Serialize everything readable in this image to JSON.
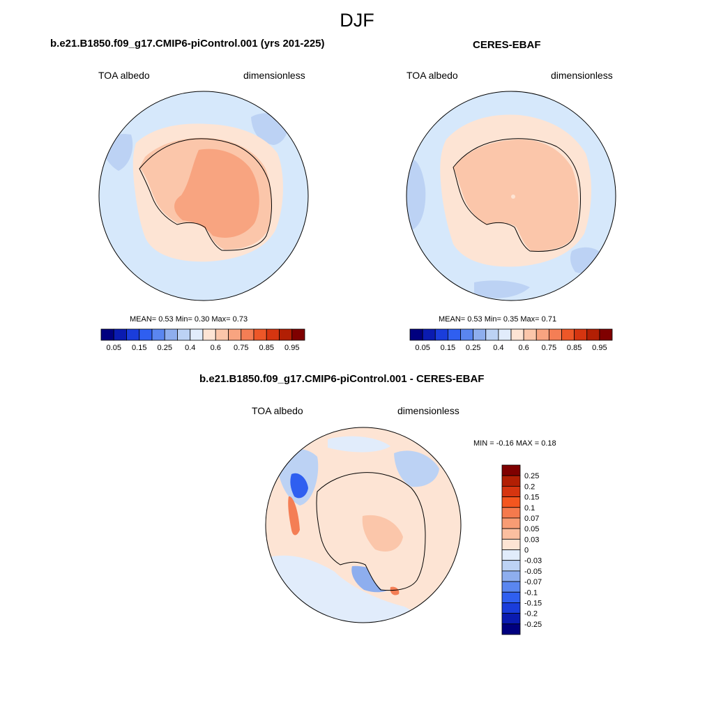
{
  "figure": {
    "title": "DJF",
    "colors": {
      "ocean": "#d6e8fb",
      "coastline": "#000000"
    }
  },
  "panels": [
    {
      "title": "b.e21.B1850.f09_g17.CMIP6-piControl.001 (yrs 201-225)",
      "left_label": "TOA albedo",
      "right_label": "dimensionless",
      "stats": "MEAN=   0.53  Min=   0.30  Max=   0.73"
    },
    {
      "title": "CERES-EBAF",
      "left_label": "TOA albedo",
      "right_label": "dimensionless",
      "stats": "MEAN=   0.53  Min=   0.35  Max=   0.71"
    },
    {
      "title": "b.e21.B1850.f09_g17.CMIP6-piControl.001 - CERES-EBAF",
      "left_label": "TOA albedo",
      "right_label": "dimensionless",
      "stats": "MIN =  -0.16 MAX =   0.18"
    }
  ],
  "chart_data": [
    {
      "type": "heatmap",
      "projection": "south polar stereographic",
      "variable": "TOA albedo",
      "units": "dimensionless",
      "mean": 0.53,
      "min": 0.3,
      "max": 0.73,
      "colorbar": {
        "orientation": "horizontal",
        "levels": [
          0.05,
          0.1,
          0.15,
          0.2,
          0.25,
          0.3,
          0.4,
          0.5,
          0.55,
          0.6,
          0.65,
          0.7,
          0.75,
          0.8,
          0.85,
          0.9,
          0.95
        ],
        "tick_labels": [
          "0.05",
          "0.15",
          "0.25",
          "0.4",
          "0.6",
          "0.75",
          "0.85",
          "0.95"
        ],
        "colors": [
          "#00007f",
          "#0a1bb0",
          "#1a3ddb",
          "#2f5ff0",
          "#5a86f0",
          "#8eaeee",
          "#bcd2f4",
          "#e1ecfb",
          "#fde4d4",
          "#fbc6aa",
          "#f8a480",
          "#f47e55",
          "#ed5728",
          "#d63510",
          "#b21f04",
          "#7f0000"
        ]
      }
    },
    {
      "type": "heatmap",
      "projection": "south polar stereographic",
      "variable": "TOA albedo",
      "units": "dimensionless",
      "mean": 0.53,
      "min": 0.35,
      "max": 0.71,
      "colorbar": {
        "orientation": "horizontal",
        "levels": [
          0.05,
          0.1,
          0.15,
          0.2,
          0.25,
          0.3,
          0.4,
          0.5,
          0.55,
          0.6,
          0.65,
          0.7,
          0.75,
          0.8,
          0.85,
          0.9,
          0.95
        ],
        "tick_labels": [
          "0.05",
          "0.15",
          "0.25",
          "0.4",
          "0.6",
          "0.75",
          "0.85",
          "0.95"
        ],
        "colors": [
          "#00007f",
          "#0a1bb0",
          "#1a3ddb",
          "#2f5ff0",
          "#5a86f0",
          "#8eaeee",
          "#bcd2f4",
          "#e1ecfb",
          "#fde4d4",
          "#fbc6aa",
          "#f8a480",
          "#f47e55",
          "#ed5728",
          "#d63510",
          "#b21f04",
          "#7f0000"
        ]
      }
    },
    {
      "type": "heatmap",
      "projection": "south polar stereographic",
      "variable": "TOA albedo",
      "units": "dimensionless",
      "min": -0.16,
      "max": 0.18,
      "colorbar": {
        "orientation": "vertical",
        "tick_labels": [
          "0.25",
          "0.2",
          "0.15",
          "0.1",
          "0.07",
          "0.05",
          "0.03",
          "0",
          "-0.03",
          "-0.05",
          "-0.07",
          "-0.1",
          "-0.15",
          "-0.2",
          "-0.25"
        ],
        "colors": [
          "#7f0000",
          "#b21f04",
          "#d63510",
          "#f4561f",
          "#f57a4d",
          "#f89c74",
          "#fbbfa0",
          "#fde4d4",
          "#e1ecfb",
          "#bcd2f4",
          "#8eaeee",
          "#5a86f0",
          "#2f5ff0",
          "#1a3ddb",
          "#0a1bb0",
          "#00007f"
        ]
      }
    }
  ]
}
